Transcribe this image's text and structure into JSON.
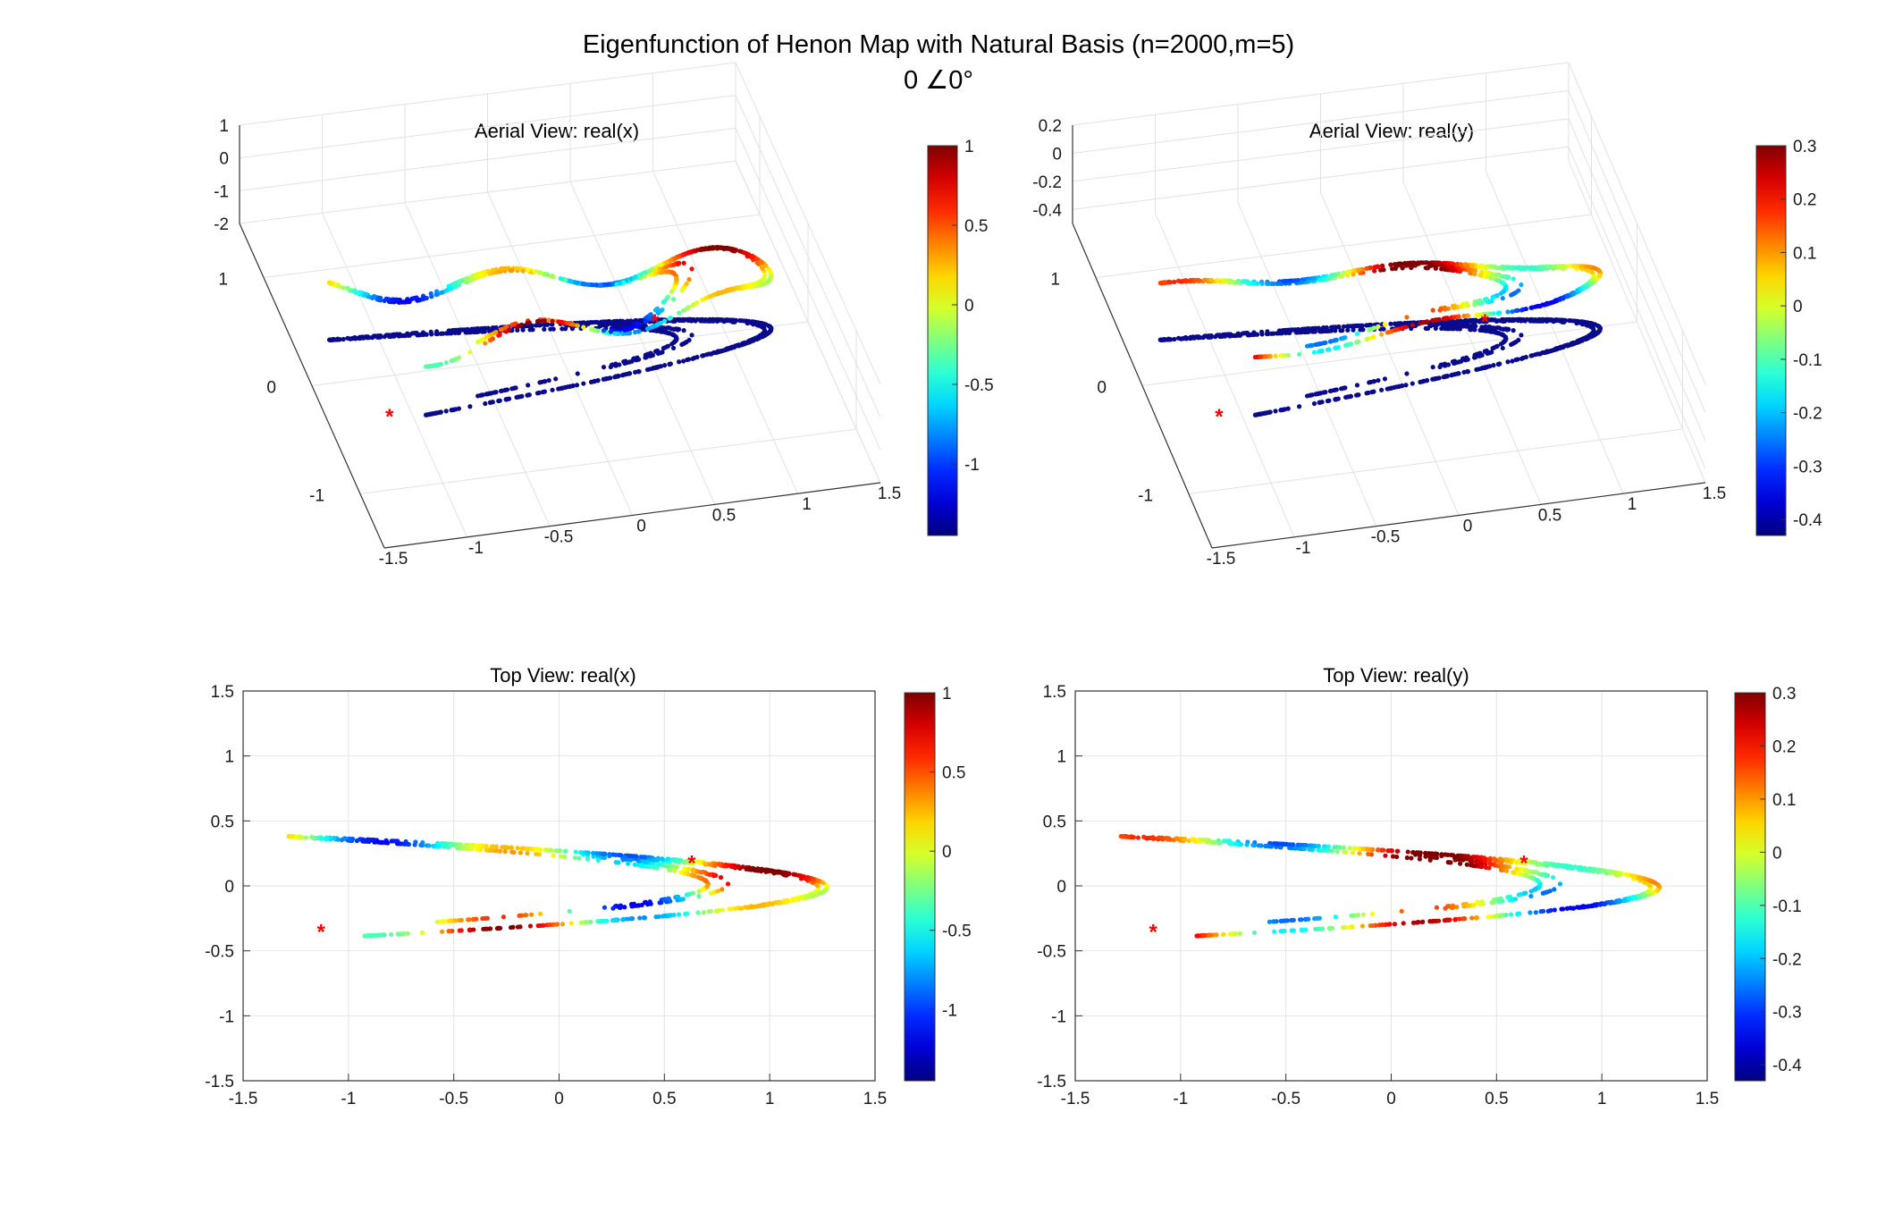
{
  "figure": {
    "title": "Eigenfunction of Henon Map with Natural Basis (n=2000,m=5)",
    "subtitle": "0 ∠0°"
  },
  "chart_data": [
    {
      "type": "scatter",
      "view": "3d",
      "title": "Aerial View: real(x)",
      "xlim": [
        -1.5,
        1.5
      ],
      "ylim": [
        -1.5,
        1.5
      ],
      "zlim": [
        -2,
        1
      ],
      "x_ticks": [
        "-1.5",
        "-1",
        "-0.5",
        "0",
        "0.5",
        "1",
        "1.5"
      ],
      "y_ticks": [
        "-1",
        "0",
        "1"
      ],
      "z_ticks": [
        "-2",
        "-1",
        "0",
        "1"
      ],
      "colorbar": {
        "min": -1.45,
        "max": 1.0,
        "ticks": [
          "-1",
          "-0.5",
          "0",
          "0.5",
          "1"
        ],
        "colormap": "jet"
      },
      "markers": [
        {
          "x": -1.13,
          "y": -0.34,
          "marker": "asterisk",
          "color": "#ff0000"
        },
        {
          "x": 0.63,
          "y": 0.19,
          "marker": "asterisk",
          "color": "#ff0000"
        }
      ]
    },
    {
      "type": "scatter",
      "view": "3d",
      "title": "Aerial View: real(y)",
      "xlim": [
        -1.5,
        1.5
      ],
      "ylim": [
        -1.5,
        1.5
      ],
      "zlim": [
        -0.5,
        0.2
      ],
      "x_ticks": [
        "-1.5",
        "-1",
        "-0.5",
        "0",
        "0.5",
        "1",
        "1.5"
      ],
      "y_ticks": [
        "-1",
        "0",
        "1"
      ],
      "z_ticks": [
        "-0.4",
        "-0.2",
        "0",
        "0.2"
      ],
      "colorbar": {
        "min": -0.43,
        "max": 0.3,
        "ticks": [
          "-0.4",
          "-0.3",
          "-0.2",
          "-0.1",
          "0",
          "0.1",
          "0.2",
          "0.3"
        ],
        "colormap": "jet"
      },
      "markers": [
        {
          "x": -1.13,
          "y": -0.34,
          "marker": "asterisk",
          "color": "#ff0000"
        },
        {
          "x": 0.63,
          "y": 0.19,
          "marker": "asterisk",
          "color": "#ff0000"
        }
      ]
    },
    {
      "type": "scatter",
      "view": "2d",
      "title": "Top View: real(x)",
      "xlim": [
        -1.5,
        1.5
      ],
      "ylim": [
        -1.5,
        1.5
      ],
      "x_ticks": [
        "-1.5",
        "-1",
        "-0.5",
        "0",
        "0.5",
        "1",
        "1.5"
      ],
      "y_ticks": [
        "-1.5",
        "-1",
        "-0.5",
        "0",
        "0.5",
        "1",
        "1.5"
      ],
      "grid": true,
      "colorbar": {
        "min": -1.45,
        "max": 1.0,
        "ticks": [
          "-1",
          "-0.5",
          "0",
          "0.5",
          "1"
        ],
        "colormap": "jet"
      },
      "markers": [
        {
          "x": -1.13,
          "y": -0.34,
          "marker": "asterisk",
          "color": "#ff0000"
        },
        {
          "x": 0.63,
          "y": 0.19,
          "marker": "asterisk",
          "color": "#ff0000"
        }
      ]
    },
    {
      "type": "scatter",
      "view": "2d",
      "title": "Top View: real(y)",
      "xlim": [
        -1.5,
        1.5
      ],
      "ylim": [
        -1.5,
        1.5
      ],
      "x_ticks": [
        "-1.5",
        "-1",
        "-0.5",
        "0",
        "0.5",
        "1",
        "1.5"
      ],
      "y_ticks": [
        "-1.5",
        "-1",
        "-0.5",
        "0",
        "0.5",
        "1",
        "1.5"
      ],
      "grid": true,
      "colorbar": {
        "min": -0.43,
        "max": 0.3,
        "ticks": [
          "-0.4",
          "-0.3",
          "-0.2",
          "-0.1",
          "0",
          "0.1",
          "0.2",
          "0.3"
        ],
        "colormap": "jet"
      },
      "markers": [
        {
          "x": -1.13,
          "y": -0.34,
          "marker": "asterisk",
          "color": "#ff0000"
        },
        {
          "x": 0.63,
          "y": 0.19,
          "marker": "asterisk",
          "color": "#ff0000"
        }
      ]
    }
  ]
}
